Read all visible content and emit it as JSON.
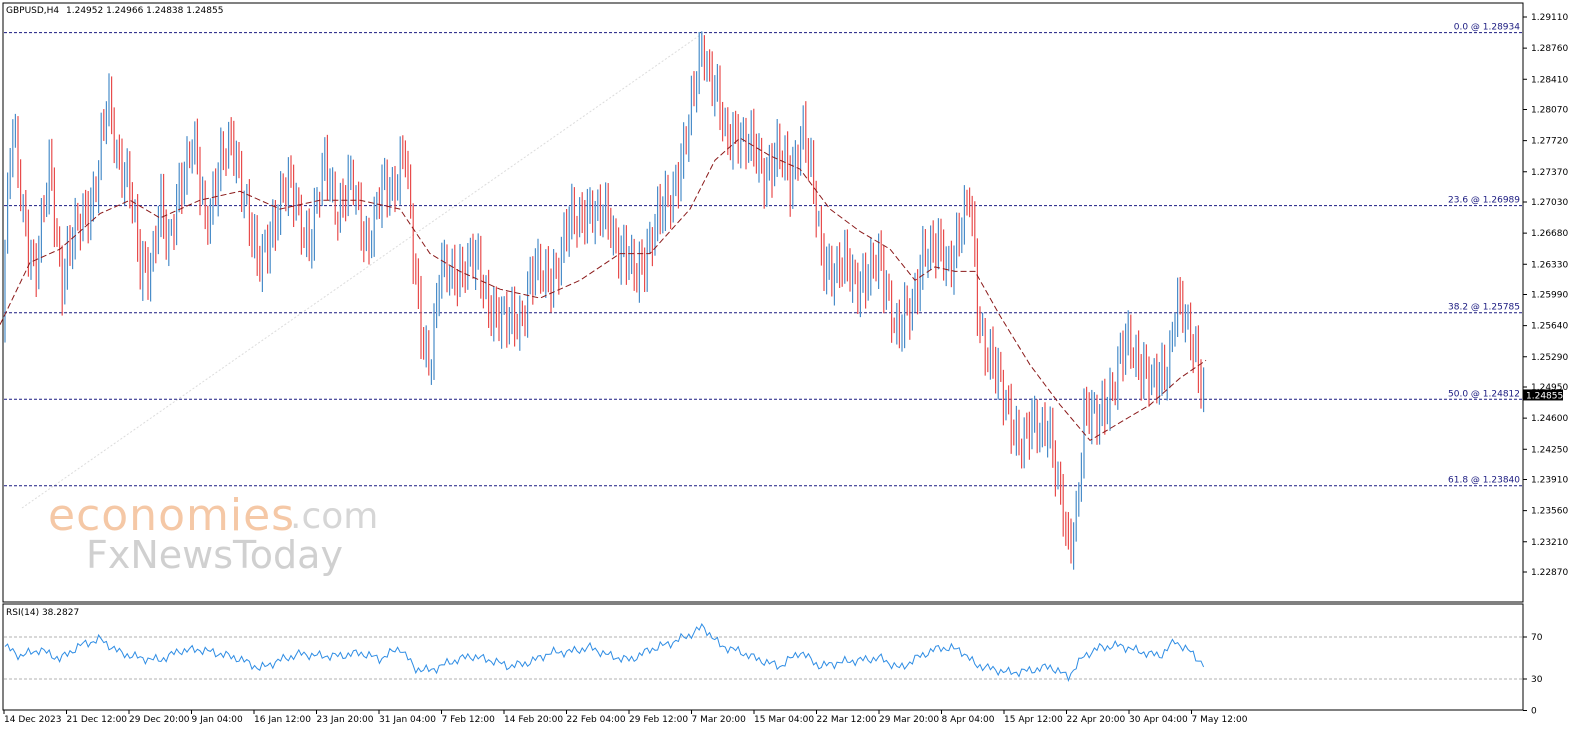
{
  "header": {
    "symbol": "GBPUSD,H4",
    "ohlc": "1.24952 1.24966 1.24838 1.24855"
  },
  "rsi": {
    "label": "RSI(14) 38.2827",
    "levels": [
      70,
      30
    ],
    "ticks": [
      "70",
      "30",
      "0"
    ]
  },
  "watermark": {
    "brand_main": "economies",
    "brand_tld": ".com",
    "brand_sub": "FxNewsToday"
  },
  "colors": {
    "bull": "#4a8dc9",
    "bear": "#e84c4c",
    "ma": "#8b1a1a",
    "fib": "#1a1a80",
    "rsi": "#2f8de4",
    "price_tag_bg": "#000000"
  },
  "chart_data": {
    "type": "candlestick",
    "price_axis_ticks": [
      "1.29110",
      "1.28760",
      "1.28410",
      "1.28070",
      "1.27720",
      "1.27370",
      "1.27030",
      "1.26680",
      "1.26330",
      "1.25990",
      "1.25640",
      "1.25290",
      "1.24950",
      "1.24600",
      "1.24250",
      "1.23910",
      "1.23560",
      "1.23210",
      "1.22870"
    ],
    "price_axis_range": [
      1.2287,
      1.2911
    ],
    "current_price": "1.24855",
    "fib_levels": [
      {
        "label": "0.0 @ 1.28934",
        "value": 1.28934
      },
      {
        "label": "23.6 @ 1.26989",
        "value": 1.26989
      },
      {
        "label": "38.2 @ 1.25785",
        "value": 1.25785
      },
      {
        "label": "50.0 @ 1.24812",
        "value": 1.24812
      },
      {
        "label": "61.8 @ 1.23840",
        "value": 1.2384
      }
    ],
    "time_axis_labels": [
      "14 Dec 2023",
      "21 Dec 12:00",
      "29 Dec 20:00",
      "9 Jan 04:00",
      "16 Jan 12:00",
      "23 Jan 20:00",
      "31 Jan 04:00",
      "7 Feb 12:00",
      "14 Feb 20:00",
      "22 Feb 04:00",
      "29 Feb 12:00",
      "7 Mar 20:00",
      "15 Mar 04:00",
      "22 Mar 12:00",
      "29 Mar 20:00",
      "8 Apr 04:00",
      "15 Apr 12:00",
      "22 Apr 20:00",
      "30 Apr 04:00",
      "7 May 12:00"
    ],
    "price_path": [
      [
        0,
        1.2565
      ],
      [
        12,
        1.278
      ],
      [
        20,
        1.272
      ],
      [
        35,
        1.262
      ],
      [
        50,
        1.274
      ],
      [
        62,
        1.262
      ],
      [
        80,
        1.268
      ],
      [
        95,
        1.272
      ],
      [
        108,
        1.281
      ],
      [
        118,
        1.276
      ],
      [
        130,
        1.272
      ],
      [
        140,
        1.262
      ],
      [
        150,
        1.264
      ],
      [
        160,
        1.27
      ],
      [
        168,
        1.264
      ],
      [
        180,
        1.273
      ],
      [
        192,
        1.277
      ],
      [
        205,
        1.268
      ],
      [
        220,
        1.275
      ],
      [
        232,
        1.276
      ],
      [
        245,
        1.272
      ],
      [
        258,
        1.262
      ],
      [
        268,
        1.266
      ],
      [
        282,
        1.272
      ],
      [
        296,
        1.27
      ],
      [
        310,
        1.266
      ],
      [
        325,
        1.274
      ],
      [
        338,
        1.27
      ],
      [
        352,
        1.272
      ],
      [
        366,
        1.266
      ],
      [
        378,
        1.27
      ],
      [
        392,
        1.272
      ],
      [
        405,
        1.277
      ],
      [
        412,
        1.265
      ],
      [
        420,
        1.256
      ],
      [
        430,
        1.253
      ],
      [
        440,
        1.262
      ],
      [
        452,
        1.262
      ],
      [
        466,
        1.264
      ],
      [
        480,
        1.262
      ],
      [
        495,
        1.258
      ],
      [
        508,
        1.256
      ],
      [
        520,
        1.258
      ],
      [
        534,
        1.262
      ],
      [
        548,
        1.262
      ],
      [
        560,
        1.264
      ],
      [
        572,
        1.268
      ],
      [
        584,
        1.27
      ],
      [
        598,
        1.268
      ],
      [
        610,
        1.269
      ],
      [
        622,
        1.264
      ],
      [
        636,
        1.262
      ],
      [
        648,
        1.266
      ],
      [
        660,
        1.268
      ],
      [
        672,
        1.272
      ],
      [
        684,
        1.276
      ],
      [
        694,
        1.282
      ],
      [
        703,
        1.289
      ],
      [
        714,
        1.283
      ],
      [
        726,
        1.277
      ],
      [
        738,
        1.279
      ],
      [
        750,
        1.276
      ],
      [
        764,
        1.274
      ],
      [
        778,
        1.276
      ],
      [
        790,
        1.272
      ],
      [
        802,
        1.28
      ],
      [
        812,
        1.272
      ],
      [
        822,
        1.264
      ],
      [
        836,
        1.263
      ],
      [
        850,
        1.262
      ],
      [
        864,
        1.262
      ],
      [
        878,
        1.263
      ],
      [
        890,
        1.26
      ],
      [
        898,
        1.2555
      ],
      [
        912,
        1.258
      ],
      [
        924,
        1.266
      ],
      [
        936,
        1.264
      ],
      [
        950,
        1.264
      ],
      [
        962,
        1.268
      ],
      [
        970,
        1.27
      ],
      [
        978,
        1.258
      ],
      [
        990,
        1.253
      ],
      [
        1000,
        1.249
      ],
      [
        1012,
        1.246
      ],
      [
        1024,
        1.243
      ],
      [
        1036,
        1.245
      ],
      [
        1048,
        1.246
      ],
      [
        1058,
        1.238
      ],
      [
        1068,
        1.231
      ],
      [
        1076,
        1.236
      ],
      [
        1084,
        1.246
      ],
      [
        1096,
        1.2455
      ],
      [
        1106,
        1.2485
      ],
      [
        1118,
        1.251
      ],
      [
        1130,
        1.255
      ],
      [
        1142,
        1.252
      ],
      [
        1154,
        1.249
      ],
      [
        1166,
        1.252
      ],
      [
        1176,
        1.259
      ],
      [
        1186,
        1.256
      ],
      [
        1196,
        1.2535
      ],
      [
        1206,
        1.2485
      ]
    ],
    "ma_path": [
      [
        0,
        1.2565
      ],
      [
        30,
        1.2635
      ],
      [
        60,
        1.265
      ],
      [
        100,
        1.269
      ],
      [
        130,
        1.2705
      ],
      [
        160,
        1.2685
      ],
      [
        200,
        1.2705
      ],
      [
        240,
        1.2715
      ],
      [
        280,
        1.2695
      ],
      [
        320,
        1.2705
      ],
      [
        360,
        1.2705
      ],
      [
        400,
        1.2695
      ],
      [
        430,
        1.2645
      ],
      [
        460,
        1.2625
      ],
      [
        500,
        1.2605
      ],
      [
        540,
        1.2595
      ],
      [
        580,
        1.2615
      ],
      [
        620,
        1.2645
      ],
      [
        650,
        1.2645
      ],
      [
        690,
        1.2695
      ],
      [
        715,
        1.275
      ],
      [
        740,
        1.2775
      ],
      [
        770,
        1.2755
      ],
      [
        800,
        1.274
      ],
      [
        830,
        1.2695
      ],
      [
        860,
        1.267
      ],
      [
        890,
        1.265
      ],
      [
        915,
        1.2615
      ],
      [
        935,
        1.263
      ],
      [
        955,
        1.2625
      ],
      [
        975,
        1.2625
      ],
      [
        1000,
        1.2575
      ],
      [
        1030,
        1.252
      ],
      [
        1060,
        1.2475
      ],
      [
        1090,
        1.2435
      ],
      [
        1120,
        1.2455
      ],
      [
        1150,
        1.2475
      ],
      [
        1180,
        1.2505
      ],
      [
        1206,
        1.2525
      ]
    ],
    "rsi_path": [
      [
        0,
        64
      ],
      [
        20,
        52
      ],
      [
        40,
        58
      ],
      [
        60,
        49
      ],
      [
        80,
        62
      ],
      [
        100,
        68
      ],
      [
        120,
        55
      ],
      [
        140,
        50
      ],
      [
        160,
        48
      ],
      [
        180,
        57
      ],
      [
        200,
        58
      ],
      [
        220,
        54
      ],
      [
        240,
        49
      ],
      [
        260,
        40
      ],
      [
        280,
        48
      ],
      [
        300,
        54
      ],
      [
        320,
        52
      ],
      [
        340,
        52
      ],
      [
        360,
        55
      ],
      [
        380,
        49
      ],
      [
        400,
        60
      ],
      [
        415,
        40
      ],
      [
        430,
        38
      ],
      [
        450,
        46
      ],
      [
        470,
        52
      ],
      [
        490,
        48
      ],
      [
        510,
        42
      ],
      [
        530,
        46
      ],
      [
        550,
        55
      ],
      [
        570,
        56
      ],
      [
        590,
        60
      ],
      [
        610,
        52
      ],
      [
        630,
        48
      ],
      [
        650,
        58
      ],
      [
        670,
        64
      ],
      [
        690,
        72
      ],
      [
        703,
        80
      ],
      [
        720,
        62
      ],
      [
        740,
        56
      ],
      [
        760,
        48
      ],
      [
        780,
        42
      ],
      [
        800,
        56
      ],
      [
        820,
        42
      ],
      [
        840,
        46
      ],
      [
        860,
        48
      ],
      [
        880,
        50
      ],
      [
        900,
        40
      ],
      [
        920,
        52
      ],
      [
        940,
        60
      ],
      [
        960,
        58
      ],
      [
        975,
        44
      ],
      [
        990,
        40
      ],
      [
        1010,
        36
      ],
      [
        1030,
        38
      ],
      [
        1050,
        42
      ],
      [
        1068,
        32
      ],
      [
        1084,
        52
      ],
      [
        1100,
        60
      ],
      [
        1120,
        62
      ],
      [
        1140,
        56
      ],
      [
        1160,
        52
      ],
      [
        1175,
        66
      ],
      [
        1190,
        56
      ],
      [
        1206,
        42
      ]
    ]
  }
}
